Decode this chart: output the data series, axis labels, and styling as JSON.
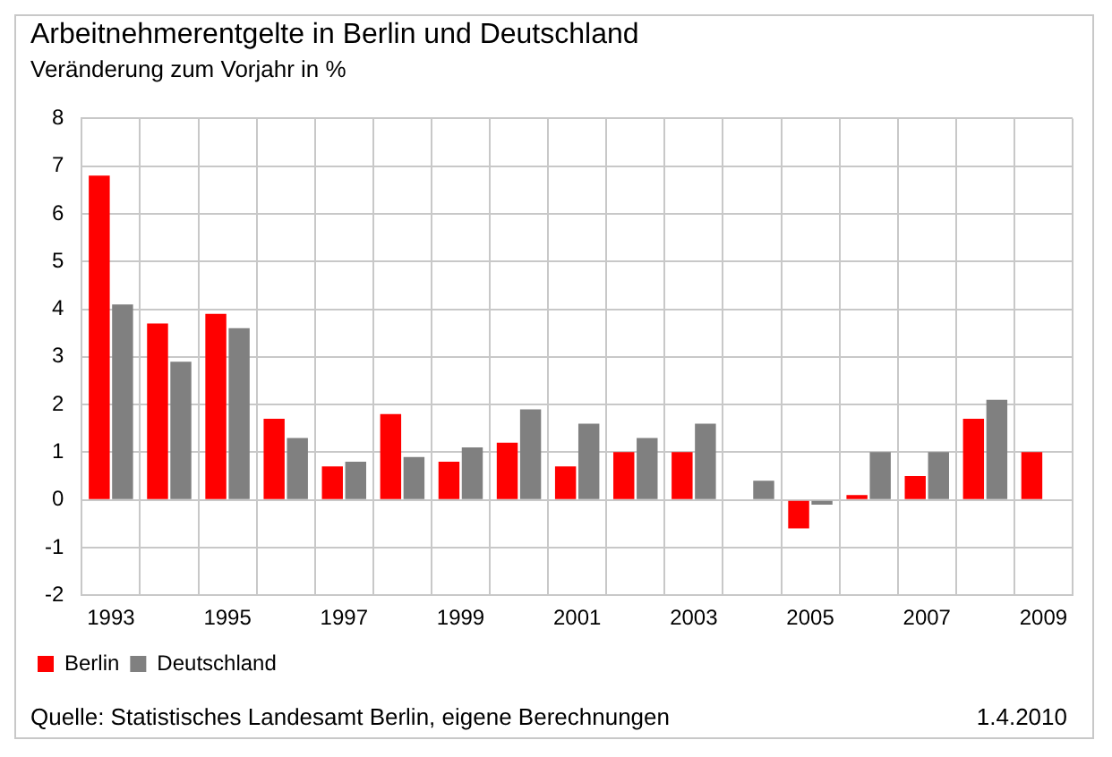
{
  "chart_data": {
    "type": "bar",
    "title": "Arbeitnehmerentgelte in Berlin und Deutschland",
    "subtitle": "Veränderung zum Vorjahr in %",
    "categories": [
      "1993",
      null,
      "1995",
      null,
      "1997",
      null,
      "1999",
      null,
      "2001",
      null,
      "2003",
      null,
      "2005",
      null,
      "2007",
      null,
      "2009"
    ],
    "series": [
      {
        "name": "Berlin",
        "color": "#ff0000",
        "values": [
          6.8,
          3.7,
          3.9,
          1.7,
          0.7,
          1.8,
          0.8,
          1.2,
          0.7,
          1.0,
          1.0,
          null,
          -0.6,
          0.1,
          0.5,
          1.7,
          1.0
        ]
      },
      {
        "name": "Deutschland",
        "color": "#808080",
        "values": [
          4.1,
          2.9,
          3.6,
          1.3,
          0.8,
          0.9,
          1.1,
          1.9,
          1.6,
          1.3,
          1.6,
          0.4,
          -0.1,
          1.0,
          1.0,
          2.1,
          null
        ]
      }
    ],
    "ylim": [
      -2,
      8
    ],
    "yticks": [
      -2,
      -1,
      0,
      1,
      2,
      3,
      4,
      5,
      6,
      7,
      8
    ],
    "grid": true,
    "legend": "bottom left",
    "annotations": [
      "Quelle: Statistisches Landesamt Berlin, eigene Berechnungen",
      "1.4.2010"
    ]
  }
}
